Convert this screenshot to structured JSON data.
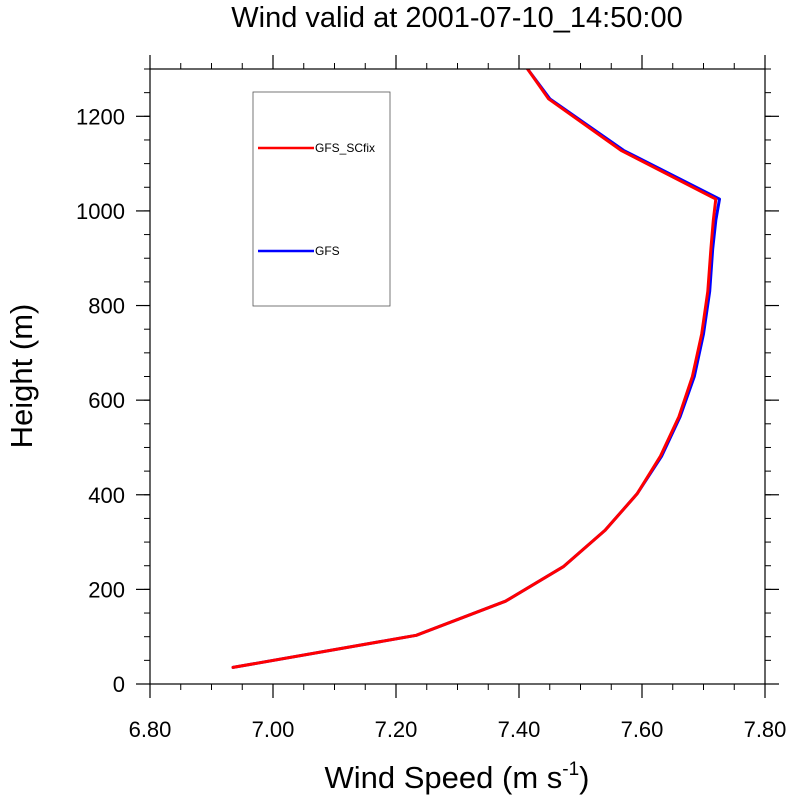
{
  "chart_data": {
    "type": "line",
    "title": "Wind valid at 2001-07-10_14:50:00",
    "xlabel": "Wind Speed (m s",
    "xlabel_superscript": "-1",
    "xlabel_suffix": ")",
    "ylabel": "Height (m)",
    "xlim": [
      6.8,
      7.8
    ],
    "ylim": [
      0,
      1300
    ],
    "xticks": [
      6.8,
      7.0,
      7.2,
      7.4,
      7.6,
      7.8
    ],
    "xtick_labels": [
      "6.80",
      "7.00",
      "7.20",
      "7.40",
      "7.60",
      "7.80"
    ],
    "yticks": [
      0,
      200,
      400,
      600,
      800,
      1000,
      1200
    ],
    "ytick_labels": [
      "0",
      "200",
      "400",
      "600",
      "800",
      "1000",
      "1200"
    ],
    "grid": false,
    "legend_position": "top-left",
    "series": [
      {
        "name": "GFS_SCfix",
        "color": "#ff0000",
        "x": [
          6.935,
          7.233,
          7.378,
          7.472,
          7.54,
          7.592,
          7.63,
          7.66,
          7.682,
          7.697,
          7.707,
          7.712,
          7.716,
          7.72,
          7.566,
          7.448,
          7.414
        ],
        "y": [
          35,
          103,
          175,
          248,
          325,
          402,
          482,
          565,
          650,
          740,
          830,
          920,
          980,
          1025,
          1128,
          1237,
          1300
        ]
      },
      {
        "name": "GFS",
        "color": "#0000ff",
        "x": [
          6.935,
          7.233,
          7.378,
          7.472,
          7.54,
          7.592,
          7.632,
          7.662,
          7.685,
          7.7,
          7.71,
          7.715,
          7.72,
          7.726,
          7.57,
          7.45,
          7.414
        ],
        "y": [
          35,
          103,
          175,
          248,
          325,
          402,
          482,
          565,
          650,
          740,
          830,
          920,
          980,
          1025,
          1128,
          1237,
          1300
        ]
      }
    ]
  }
}
